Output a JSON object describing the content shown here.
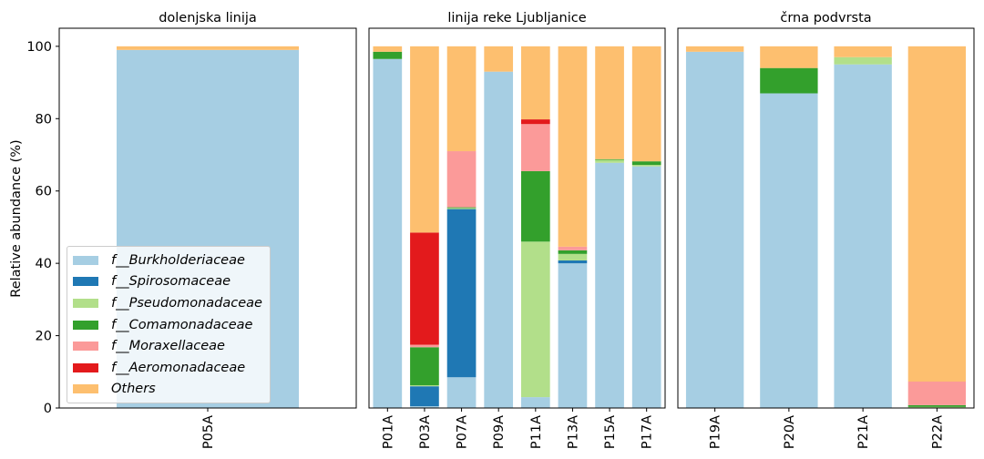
{
  "chart_data": {
    "type": "bar",
    "stacked": true,
    "ylabel": "Relative abundance (%)",
    "ylim": [
      0,
      105
    ],
    "yticks": [
      0,
      20,
      40,
      60,
      80,
      100
    ],
    "legend": {
      "placement": "lower-left of first panel"
    },
    "series": [
      {
        "name": "f__Burkholderiaceae",
        "color": "#a6cee3"
      },
      {
        "name": "f__Spirosomaceae",
        "color": "#1f78b4"
      },
      {
        "name": "f__Pseudomonadaceae",
        "color": "#b2df8a"
      },
      {
        "name": "f__Comamonadaceae",
        "color": "#33a02c"
      },
      {
        "name": "f__Moraxellaceae",
        "color": "#fb9a99"
      },
      {
        "name": "f__Aeromonadaceae",
        "color": "#e31a1c"
      },
      {
        "name": "Others",
        "color": "#fdbf6f"
      }
    ],
    "panels": [
      {
        "title": "dolenjska linija",
        "categories": [
          "P05A"
        ],
        "values": [
          [
            99,
            0,
            0,
            0,
            0,
            0,
            1
          ]
        ]
      },
      {
        "title": "linija reke Ljubljanice",
        "categories": [
          "P01A",
          "P03A",
          "P07A",
          "P09A",
          "P11A",
          "P13A",
          "P15A",
          "P17A"
        ],
        "values": [
          [
            96.5,
            0,
            0,
            2,
            0,
            0,
            1.5
          ],
          [
            0.5,
            5.5,
            0.3,
            10.5,
            0.7,
            31,
            51.5
          ],
          [
            8.5,
            46.5,
            0.3,
            0.2,
            15.5,
            0,
            29
          ],
          [
            93,
            0,
            0,
            0,
            0,
            0,
            7
          ],
          [
            3,
            0,
            43,
            19.5,
            13,
            1.3,
            20.2
          ],
          [
            40,
            0.8,
            1.8,
            1,
            1,
            0,
            55.4
          ],
          [
            67.8,
            0,
            0.8,
            0.2,
            0,
            0,
            31.2
          ],
          [
            66.8,
            0,
            0.4,
            1,
            0,
            0,
            31.8
          ]
        ]
      },
      {
        "title": "črna podvrsta",
        "categories": [
          "P19A",
          "P20A",
          "P21A",
          "P22A"
        ],
        "values": [
          [
            98.5,
            0,
            0,
            0,
            0,
            0,
            1.5
          ],
          [
            87,
            0,
            0,
            7,
            0,
            0,
            6
          ],
          [
            95,
            0,
            2,
            0,
            0,
            0,
            3
          ],
          [
            0,
            0,
            0.3,
            0.5,
            6.5,
            0,
            92.7
          ]
        ]
      }
    ]
  }
}
